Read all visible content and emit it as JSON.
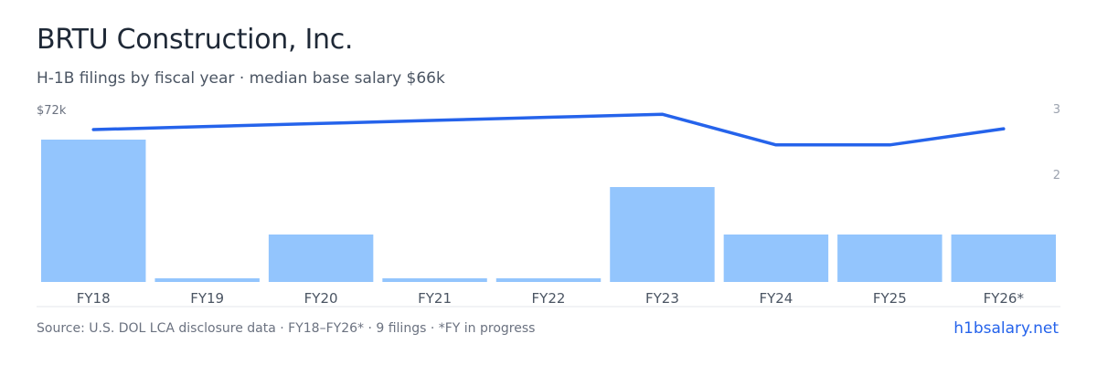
{
  "header": {
    "title": "BRTU Construction, Inc.",
    "subtitle": "H-1B filings by fiscal year · median base salary $66k"
  },
  "chart_data": {
    "type": "bar",
    "categories": [
      "FY18",
      "FY19",
      "FY20",
      "FY21",
      "FY22",
      "FY23",
      "FY24",
      "FY25",
      "FY26*"
    ],
    "series": [
      {
        "kind": "bar",
        "values": [
          3,
          0,
          1,
          0,
          0,
          2,
          1,
          1,
          1
        ]
      },
      {
        "kind": "line",
        "values": [
          69.5,
          69.9,
          70.3,
          70.7,
          71.1,
          71.5,
          67.5,
          67.5,
          69.6
        ]
      }
    ],
    "left_axis": {
      "ticks": [
        {
          "value": 72,
          "label": "$72k"
        }
      ],
      "range": [
        0,
        72
      ]
    },
    "right_axis": {
      "ticks": [
        {
          "value": 3,
          "label": "3"
        },
        {
          "value": 2,
          "label": "2"
        }
      ],
      "range": [
        0,
        3
      ]
    },
    "colors": {
      "bar": "#93c5fd",
      "line": "#2563eb"
    }
  },
  "footer": {
    "source": "Source: U.S. DOL LCA disclosure data · FY18–FY26* · 9 filings · *FY in progress",
    "brand": "h1bsalary.net"
  }
}
